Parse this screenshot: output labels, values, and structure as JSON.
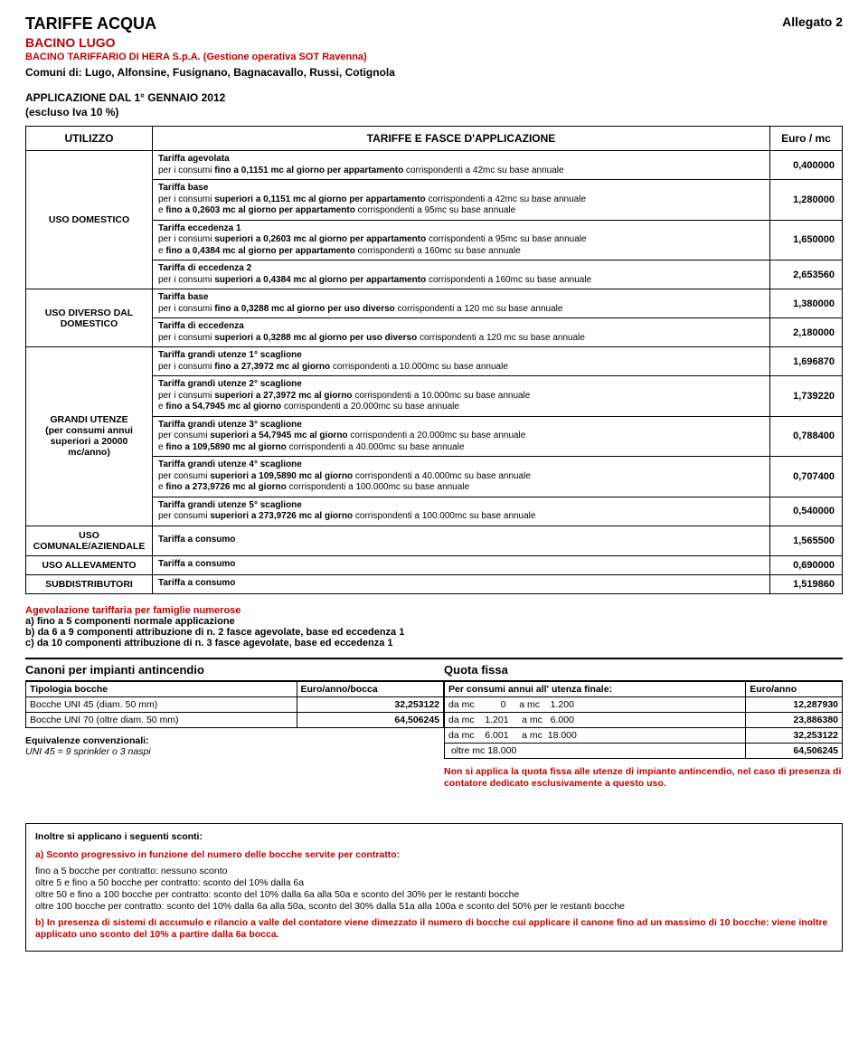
{
  "header": {
    "allegato": "Allegato 2",
    "title": "TARIFFE ACQUA",
    "bacino": "BACINO LUGO",
    "subline": "BACINO TARIFFARIO  DI HERA S.p.A. (Gestione operativa SOT Ravenna)",
    "comuni": "Comuni di: Lugo, Alfonsine, Fusignano, Bagnacavallo, Russi, Cotignola",
    "appl": "APPLICAZIONE DAL 1° GENNAIO 2012",
    "escluso": "(escluso Iva 10 %)"
  },
  "tableHeader": {
    "utilizzo": "UTILIZZO",
    "fasce": "TARIFFE E FASCE D'APPLICAZIONE",
    "euromc": "Euro / mc"
  },
  "rows": {
    "domestico": {
      "label": "USO DOMESTICO",
      "blocks": [
        {
          "title": "Tariffa agevolata",
          "txt": "per i consumi <b>fino a 0,1151 mc al giorno per appartamento</b> corrispondenti a 42mc su base annuale",
          "val": "0,400000"
        },
        {
          "title": "Tariffa base",
          "txt": "per i consumi <b>superiori a 0,1151 mc al giorno per appartamento</b> corrispondenti a 42mc su base annuale<br>e <b>fino a 0,2603 mc al giorno per appartamento</b> corrispondenti a 95mc su base annuale",
          "val": "1,280000"
        },
        {
          "title": "Tariffa eccedenza 1",
          "txt": "per i consumi <b>superiori a 0,2603 mc al giorno per appartamento</b> corrispondenti a 95mc su base annuale<br>e <b>fino a 0,4384 mc al giorno per appartamento</b> corrispondenti a 160mc su base annuale",
          "val": "1,650000"
        },
        {
          "title": "Tariffa di eccedenza 2",
          "txt": "per i consumi <b>superiori a 0,4384 mc al giorno per appartamento</b> corrispondenti a 160mc su base annuale",
          "val": "2,653560"
        }
      ]
    },
    "diverso": {
      "label": "USO DIVERSO DAL DOMESTICO",
      "blocks": [
        {
          "title": "Tariffa base",
          "txt": "per i consumi <b>fino a  0,3288 mc al giorno per uso diverso</b> corrispondenti a 120 mc su base annuale",
          "val": "1,380000"
        },
        {
          "title": "Tariffa di eccedenza",
          "txt": "per i consumi <b>superiori a 0,3288 mc al giorno per uso diverso</b> corrispondenti a 120 mc su base annuale",
          "val": "2,180000"
        }
      ]
    },
    "grandi": {
      "label": "GRANDI UTENZE\n(per consumi annui superiori a 20000 mc/anno)",
      "blocks": [
        {
          "title": "Tariffa grandi utenze 1° scaglione",
          "txt": "per i consumi <b>fino a 27,3972 mc al giorno</b> corrispondenti a 10.000mc su base annuale",
          "val": "1,696870"
        },
        {
          "title": "Tariffa grandi utenze 2° scaglione",
          "txt": "per i consumi <b>superiori a 27,3972 mc al giorno</b> corrispondenti a 10.000mc su base annuale<br>e <b>fino a 54,7945 mc al giorno</b> corrispondenti a 20.000mc su base annuale",
          "val": "1,739220"
        },
        {
          "title": "Tariffa grandi utenze 3° scaglione",
          "txt": "per consumi <b>superiori a 54,7945 mc al giorno</b> corrispondenti a 20.000mc su base annuale<br>e <b>fino a 109,5890 mc al giorno</b> corrispondenti a 40.000mc su base annuale",
          "val": "0,788400"
        },
        {
          "title": "Tariffa grandi utenze 4° scaglione",
          "txt": "per consumi <b>superiori a 109,5890 mc al giorno</b> corrispondenti a 40.000mc su base annuale<br>e <b>fino a 273,9726 mc al giorno</b> corrispondenti a 100.000mc su base annuale",
          "val": "0,707400"
        },
        {
          "title": "Tariffa grandi utenze 5° scaglione",
          "txt": "per consumi <b>superiori a 273,9726 mc al giorno</b> corrispondenti a 100.000mc su base annuale",
          "val": "0,540000"
        }
      ]
    },
    "comunale": {
      "label": "USO COMUNALE/AZIENDALE",
      "title": "Tariffa a consumo",
      "val": "1,565500"
    },
    "allev": {
      "label": "USO ALLEVAMENTO",
      "title": "Tariffa a consumo",
      "val": "0,690000"
    },
    "sub": {
      "label": "SUBDISTRIBUTORI",
      "title": "Tariffa a consumo",
      "val": "1,519860"
    }
  },
  "agev": {
    "hd": "Agevolazione tariffaria per famiglie numerose",
    "a": "a) fino a 5 componenti normale applicazione",
    "b": "b) da 6 a 9 componenti attribuzione di n. 2 fasce agevolate, base ed eccedenza 1",
    "c": "c) da 10 componenti attribuzione di n. 3 fasce agevolate, base ed eccedenza 1"
  },
  "canoni": {
    "title": "Canoni per impianti antincendio",
    "colTipologia": "Tipologia bocche",
    "colEuroBocca": "Euro/anno/bocca",
    "rows": [
      {
        "t": "Bocche UNI 45 (diam. 50 mm)",
        "v": "32,253122"
      },
      {
        "t": "Bocche UNI 70 (oltre diam. 50 mm)",
        "v": "64,506245"
      }
    ],
    "equivTitle": "Equivalenze convenzionali:",
    "equivTxt": "UNI 45 = 9 sprinkler o 3 naspi"
  },
  "quota": {
    "title": "Quota fissa",
    "sub": "Per consumi annui all' utenza finale:",
    "euroanno": "Euro/anno",
    "rows": [
      {
        "r": "da mc          0     a mc    1.200",
        "v": "12,287930"
      },
      {
        "r": "da mc    1.201     a mc   6.000",
        "v": "23,886380"
      },
      {
        "r": "da mc    6.001     a mc  18.000",
        "v": "32,253122"
      },
      {
        "r": " oltre mc 18.000",
        "v": "64,506245"
      }
    ],
    "note": "Non si applica la quota fissa alle utenze di impianto antincendio, nel caso di presenza di contatore dedicato esclusivamente a questo uso."
  },
  "sconti": {
    "hd": "Inoltre si applicano i seguenti sconti:",
    "a_lead": "a) Sconto progressivo in funzione del numero delle bocche servite per contratto:",
    "lines": [
      "fino a 5 bocche per contratto: nessuno sconto",
      "oltre 5 e fino a 50 bocche per contratto: sconto del 10% dalla 6a",
      "oltre 50 e fino a 100 bocche per contratto: sconto del 10% dalla 6a alla 50a e sconto del 30% per le restanti bocche",
      "oltre 100 bocche per contratto: sconto del 10% dalla 6a alla 50a, sconto del 30% dalla 51a alla 100a e sconto del 50% per le restanti bocche"
    ],
    "b": "b) In presenza di sistemi di accumulo e rilancio a valle del contatore viene dimezzato il numero di bocche cui applicare il canone fino ad un massimo di 10 bocche: viene inoltre applicato uno sconto del 10% a partire dalla 6a bocca."
  }
}
